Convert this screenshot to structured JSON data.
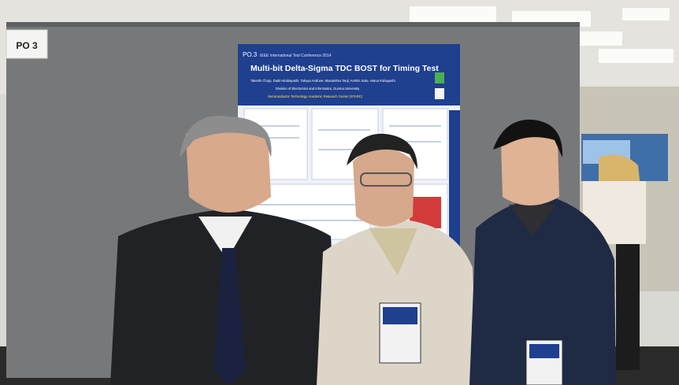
{
  "sign": {
    "label": "PO 3"
  },
  "poster": {
    "id": "PO.3",
    "conference": "IEEE International Test Conference 2014",
    "title": "Multi-bit Delta-Sigma TDC BOST for Timing Test",
    "authors": "Takeshi Chujo, Daiki Hirabayashi, Takuya Arafune, Masamitsu Tanji, Anshin Sato, Haruo Kobayashi",
    "division": "Division of Electronics and Informatics, Gunma University",
    "institute": "Semiconductor Technology Academic Research Center (STARC)"
  },
  "colors": {
    "poster_header": "#1f3f8f",
    "partition": "#77787a",
    "carpet": "#2a2a2a"
  }
}
